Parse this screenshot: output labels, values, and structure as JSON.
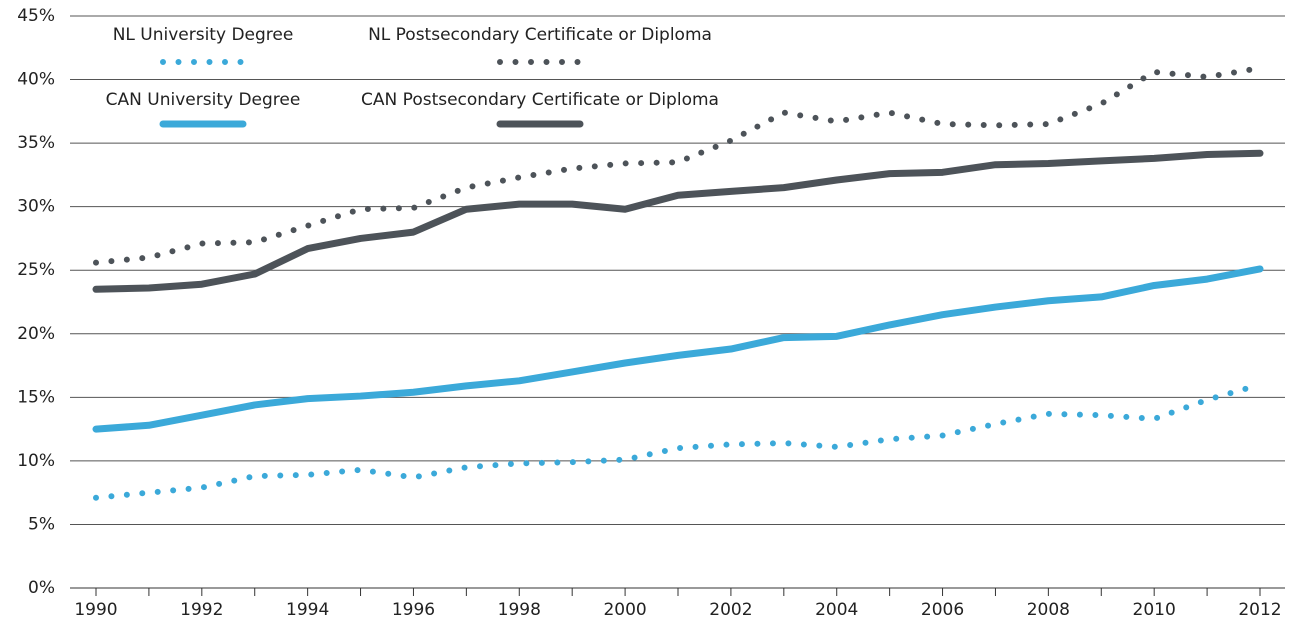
{
  "chart_data": {
    "type": "line",
    "x": [
      1990,
      1991,
      1992,
      1993,
      1994,
      1995,
      1996,
      1997,
      1998,
      1999,
      2000,
      2001,
      2002,
      2003,
      2004,
      2005,
      2006,
      2007,
      2008,
      2009,
      2010,
      2011,
      2012
    ],
    "xlim": [
      1990,
      2012
    ],
    "xticks": [
      1990,
      1992,
      1994,
      1996,
      1998,
      2000,
      2002,
      2004,
      2006,
      2008,
      2010,
      2012
    ],
    "ylim": [
      0,
      45
    ],
    "yticks": [
      {
        "value": 0,
        "label": "0%"
      },
      {
        "value": 5,
        "label": "5%"
      },
      {
        "value": 10,
        "label": "10%"
      },
      {
        "value": 15,
        "label": "15%"
      },
      {
        "value": 20,
        "label": "20%"
      },
      {
        "value": 25,
        "label": "25%"
      },
      {
        "value": 30,
        "label": "30%"
      },
      {
        "value": 35,
        "label": "35%"
      },
      {
        "value": 40,
        "label": "40%"
      },
      {
        "value": 45,
        "label": "45%"
      }
    ],
    "grid": true,
    "series": [
      {
        "name": "NL University Degree",
        "color": "#3ba9d9",
        "style": "dotted",
        "values": [
          7.1,
          7.5,
          7.9,
          8.8,
          8.9,
          9.3,
          8.7,
          9.5,
          9.8,
          9.9,
          10.1,
          11.0,
          11.3,
          11.4,
          11.1,
          11.7,
          12.0,
          12.9,
          13.7,
          13.6,
          13.3,
          14.8,
          16.0
        ]
      },
      {
        "name": "NL Postsecondary Certificate or Diploma",
        "color": "#4d5359",
        "style": "dotted",
        "values": [
          25.6,
          26.0,
          27.1,
          27.2,
          28.5,
          29.8,
          29.9,
          31.5,
          32.3,
          33.0,
          33.4,
          33.5,
          35.2,
          37.4,
          36.7,
          37.4,
          36.5,
          36.4,
          36.5,
          38.1,
          40.6,
          40.2,
          40.9
        ]
      },
      {
        "name": "CAN University Degree",
        "color": "#3ba9d9",
        "style": "solid",
        "values": [
          12.5,
          12.8,
          13.6,
          14.4,
          14.9,
          15.1,
          15.4,
          15.9,
          16.3,
          17.0,
          17.7,
          18.3,
          18.8,
          19.7,
          19.8,
          20.7,
          21.5,
          22.1,
          22.6,
          22.9,
          23.8,
          24.3,
          25.1
        ]
      },
      {
        "name": "CAN Postsecondary Certificate or Diploma",
        "color": "#4d5359",
        "style": "solid",
        "values": [
          23.5,
          23.6,
          23.9,
          24.7,
          26.7,
          27.5,
          28.0,
          29.8,
          30.2,
          30.2,
          29.8,
          30.9,
          31.2,
          31.5,
          32.1,
          32.6,
          32.7,
          33.3,
          33.4,
          33.6,
          33.8,
          34.1,
          34.2
        ]
      }
    ]
  }
}
